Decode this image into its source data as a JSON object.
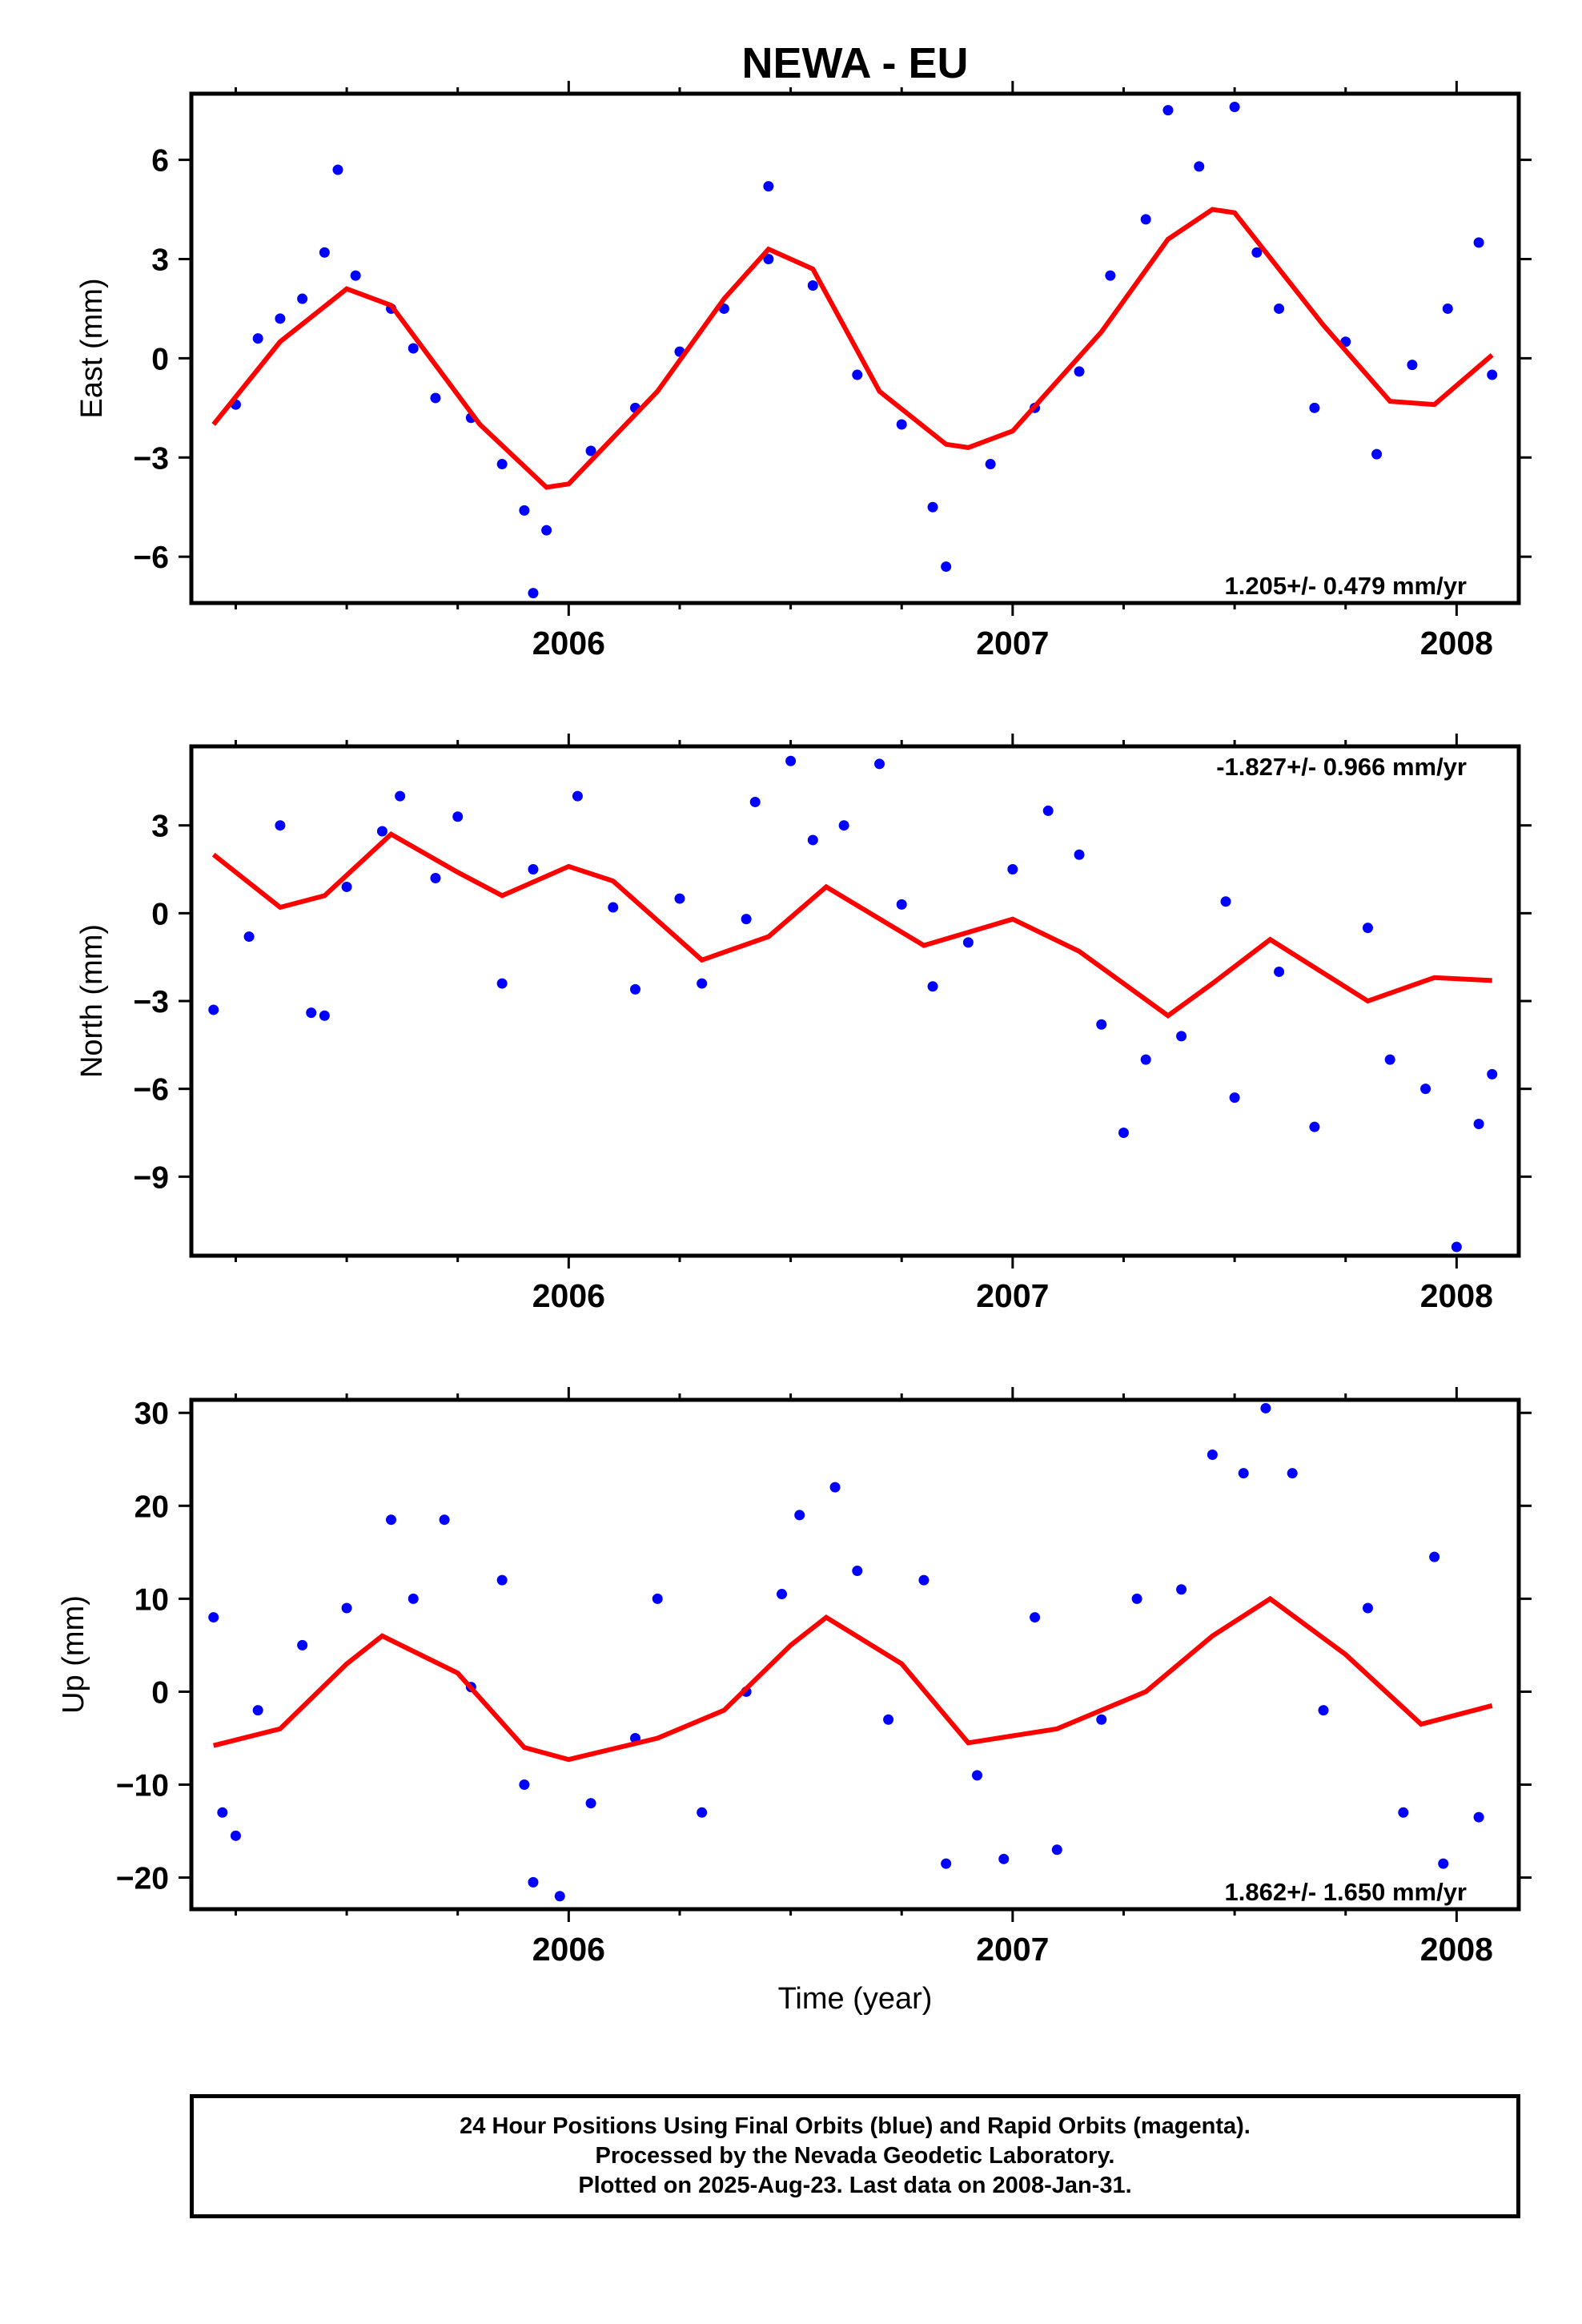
{
  "title": "NEWA - EU",
  "xlabel": "Time (year)",
  "x_tick_labels": [
    "2006",
    "2007",
    "2008"
  ],
  "caption": [
    "24 Hour Positions Using Final Orbits (blue) and Rapid Orbits (magenta).",
    "Processed by the Nevada Geodetic Laboratory.",
    "Plotted on 2025-Aug-23. Last data on 2008-Jan-31."
  ],
  "colors": {
    "data": "#0000ff",
    "fit": "#ff0000",
    "axis": "#000000"
  },
  "chart_data": [
    {
      "type": "scatter",
      "panel": "east",
      "ylabel": "East (mm)",
      "xlim": [
        2005.15,
        2008.14
      ],
      "ylim": [
        -7.4,
        8.0
      ],
      "yticks": [
        -6,
        -3,
        0,
        3,
        6
      ],
      "rate_label": "1.205+/- 0.479 mm/yr",
      "rate_position": "bottom-right",
      "fit": {
        "x": [
          2005.2,
          2005.35,
          2005.5,
          2005.6,
          2005.8,
          2005.95,
          2006.0,
          2006.2,
          2006.35,
          2006.45,
          2006.55,
          2006.7,
          2006.85,
          2006.9,
          2007.0,
          2007.2,
          2007.35,
          2007.45,
          2007.5,
          2007.7,
          2007.85,
          2007.95,
          2008.08
        ],
        "y": [
          -2.0,
          0.5,
          2.1,
          1.6,
          -2.0,
          -3.9,
          -3.8,
          -1.0,
          1.8,
          3.3,
          2.7,
          -1.0,
          -2.6,
          -2.7,
          -2.2,
          0.8,
          3.6,
          4.5,
          4.4,
          1.0,
          -1.3,
          -1.4,
          0.1
        ]
      },
      "points": [
        {
          "x": 2005.25,
          "y": -1.4
        },
        {
          "x": 2005.3,
          "y": 0.6
        },
        {
          "x": 2005.35,
          "y": 1.2
        },
        {
          "x": 2005.4,
          "y": 1.8
        },
        {
          "x": 2005.45,
          "y": 3.2
        },
        {
          "x": 2005.48,
          "y": 5.7
        },
        {
          "x": 2005.52,
          "y": 2.5
        },
        {
          "x": 2005.6,
          "y": 1.5
        },
        {
          "x": 2005.65,
          "y": 0.3
        },
        {
          "x": 2005.7,
          "y": -1.2
        },
        {
          "x": 2005.78,
          "y": -1.8
        },
        {
          "x": 2005.85,
          "y": -3.2
        },
        {
          "x": 2005.9,
          "y": -4.6
        },
        {
          "x": 2005.92,
          "y": -7.1
        },
        {
          "x": 2005.95,
          "y": -5.2
        },
        {
          "x": 2006.05,
          "y": -2.8
        },
        {
          "x": 2006.15,
          "y": -1.5
        },
        {
          "x": 2006.25,
          "y": 0.2
        },
        {
          "x": 2006.35,
          "y": 1.5
        },
        {
          "x": 2006.45,
          "y": 3.0
        },
        {
          "x": 2006.45,
          "y": 5.2
        },
        {
          "x": 2006.55,
          "y": 2.2
        },
        {
          "x": 2006.65,
          "y": -0.5
        },
        {
          "x": 2006.75,
          "y": -2.0
        },
        {
          "x": 2006.82,
          "y": -4.5
        },
        {
          "x": 2006.85,
          "y": -6.3
        },
        {
          "x": 2006.95,
          "y": -3.2
        },
        {
          "x": 2007.05,
          "y": -1.5
        },
        {
          "x": 2007.15,
          "y": -0.4
        },
        {
          "x": 2007.22,
          "y": 2.5
        },
        {
          "x": 2007.3,
          "y": 4.2
        },
        {
          "x": 2007.35,
          "y": 7.5
        },
        {
          "x": 2007.42,
          "y": 5.8
        },
        {
          "x": 2007.5,
          "y": 7.6
        },
        {
          "x": 2007.55,
          "y": 3.2
        },
        {
          "x": 2007.6,
          "y": 1.5
        },
        {
          "x": 2007.68,
          "y": -1.5
        },
        {
          "x": 2007.75,
          "y": 0.5
        },
        {
          "x": 2007.82,
          "y": -2.9
        },
        {
          "x": 2007.9,
          "y": -0.2
        },
        {
          "x": 2007.98,
          "y": 1.5
        },
        {
          "x": 2008.05,
          "y": 3.5
        },
        {
          "x": 2008.08,
          "y": -0.5
        }
      ]
    },
    {
      "type": "scatter",
      "panel": "north",
      "ylabel": "North (mm)",
      "xlim": [
        2005.15,
        2008.14
      ],
      "ylim": [
        -11.7,
        5.7
      ],
      "yticks": [
        -9,
        -6,
        -3,
        0,
        3
      ],
      "rate_label": "-1.827+/- 0.966 mm/yr",
      "rate_position": "top-right",
      "fit": {
        "x": [
          2005.2,
          2005.35,
          2005.45,
          2005.6,
          2005.75,
          2005.85,
          2006.0,
          2006.1,
          2006.3,
          2006.45,
          2006.58,
          2006.8,
          2007.0,
          2007.15,
          2007.35,
          2007.45,
          2007.58,
          2007.8,
          2007.95,
          2008.08
        ],
        "y": [
          2.0,
          0.2,
          0.6,
          2.7,
          1.4,
          0.6,
          1.6,
          1.1,
          -1.6,
          -0.8,
          0.9,
          -1.1,
          -0.2,
          -1.3,
          -3.5,
          -2.4,
          -0.9,
          -3.0,
          -2.2,
          -2.3
        ]
      },
      "points": [
        {
          "x": 2005.2,
          "y": -3.3
        },
        {
          "x": 2005.28,
          "y": -0.8
        },
        {
          "x": 2005.35,
          "y": 3.0
        },
        {
          "x": 2005.42,
          "y": -3.4
        },
        {
          "x": 2005.45,
          "y": -3.5
        },
        {
          "x": 2005.5,
          "y": 0.9
        },
        {
          "x": 2005.58,
          "y": 2.8
        },
        {
          "x": 2005.62,
          "y": 4.0
        },
        {
          "x": 2005.7,
          "y": 1.2
        },
        {
          "x": 2005.75,
          "y": 3.3
        },
        {
          "x": 2005.85,
          "y": -2.4
        },
        {
          "x": 2005.92,
          "y": 1.5
        },
        {
          "x": 2006.02,
          "y": 4.0
        },
        {
          "x": 2006.1,
          "y": 0.2
        },
        {
          "x": 2006.15,
          "y": -2.6
        },
        {
          "x": 2006.25,
          "y": 0.5
        },
        {
          "x": 2006.3,
          "y": -2.4
        },
        {
          "x": 2006.4,
          "y": -0.2
        },
        {
          "x": 2006.42,
          "y": 3.8
        },
        {
          "x": 2006.5,
          "y": 5.2
        },
        {
          "x": 2006.55,
          "y": 2.5
        },
        {
          "x": 2006.62,
          "y": 3.0
        },
        {
          "x": 2006.7,
          "y": 5.1
        },
        {
          "x": 2006.75,
          "y": 0.3
        },
        {
          "x": 2006.82,
          "y": -2.5
        },
        {
          "x": 2006.9,
          "y": -1.0
        },
        {
          "x": 2007.0,
          "y": 1.5
        },
        {
          "x": 2007.08,
          "y": 3.5
        },
        {
          "x": 2007.15,
          "y": 2.0
        },
        {
          "x": 2007.2,
          "y": -3.8
        },
        {
          "x": 2007.25,
          "y": -7.5
        },
        {
          "x": 2007.3,
          "y": -5.0
        },
        {
          "x": 2007.38,
          "y": -4.2
        },
        {
          "x": 2007.48,
          "y": 0.4
        },
        {
          "x": 2007.5,
          "y": -6.3
        },
        {
          "x": 2007.6,
          "y": -2.0
        },
        {
          "x": 2007.68,
          "y": -7.3
        },
        {
          "x": 2007.8,
          "y": -0.5
        },
        {
          "x": 2007.85,
          "y": -5.0
        },
        {
          "x": 2007.93,
          "y": -6.0
        },
        {
          "x": 2008.0,
          "y": -11.4
        },
        {
          "x": 2008.05,
          "y": -7.2
        },
        {
          "x": 2008.08,
          "y": -5.5
        }
      ]
    },
    {
      "type": "scatter",
      "panel": "up",
      "ylabel": "Up (mm)",
      "xlim": [
        2005.15,
        2008.14
      ],
      "ylim": [
        -23.4,
        31.4
      ],
      "yticks": [
        -20,
        -10,
        0,
        10,
        20,
        30
      ],
      "rate_label": "1.862+/- 1.650 mm/yr",
      "rate_position": "bottom-right",
      "fit": {
        "x": [
          2005.2,
          2005.35,
          2005.5,
          2005.58,
          2005.75,
          2005.9,
          2006.0,
          2006.2,
          2006.35,
          2006.5,
          2006.58,
          2006.75,
          2006.9,
          2007.1,
          2007.3,
          2007.45,
          2007.58,
          2007.75,
          2007.92,
          2008.08
        ],
        "y": [
          -5.8,
          -4.0,
          3.0,
          6.0,
          2.0,
          -6.0,
          -7.3,
          -5.0,
          -2.0,
          5.0,
          8.0,
          3.0,
          -5.5,
          -4.0,
          0.0,
          6.0,
          10.0,
          4.0,
          -3.5,
          -1.5
        ]
      },
      "points": [
        {
          "x": 2005.2,
          "y": 8.0
        },
        {
          "x": 2005.22,
          "y": -13.0
        },
        {
          "x": 2005.25,
          "y": -15.5
        },
        {
          "x": 2005.3,
          "y": -2.0
        },
        {
          "x": 2005.4,
          "y": 5.0
        },
        {
          "x": 2005.5,
          "y": 9.0
        },
        {
          "x": 2005.6,
          "y": 18.5
        },
        {
          "x": 2005.65,
          "y": 10.0
        },
        {
          "x": 2005.72,
          "y": 18.5
        },
        {
          "x": 2005.78,
          "y": 0.5
        },
        {
          "x": 2005.85,
          "y": 12.0
        },
        {
          "x": 2005.9,
          "y": -10.0
        },
        {
          "x": 2005.92,
          "y": -20.5
        },
        {
          "x": 2005.98,
          "y": -22.0
        },
        {
          "x": 2006.05,
          "y": -12.0
        },
        {
          "x": 2006.15,
          "y": -5.0
        },
        {
          "x": 2006.2,
          "y": 10.0
        },
        {
          "x": 2006.3,
          "y": -13.0
        },
        {
          "x": 2006.4,
          "y": 0.0
        },
        {
          "x": 2006.48,
          "y": 10.5
        },
        {
          "x": 2006.52,
          "y": 19.0
        },
        {
          "x": 2006.6,
          "y": 22.0
        },
        {
          "x": 2006.65,
          "y": 13.0
        },
        {
          "x": 2006.72,
          "y": -3.0
        },
        {
          "x": 2006.8,
          "y": 12.0
        },
        {
          "x": 2006.85,
          "y": -18.5
        },
        {
          "x": 2006.92,
          "y": -9.0
        },
        {
          "x": 2006.98,
          "y": -18.0
        },
        {
          "x": 2007.05,
          "y": 8.0
        },
        {
          "x": 2007.1,
          "y": -17.0
        },
        {
          "x": 2007.2,
          "y": -3.0
        },
        {
          "x": 2007.28,
          "y": 10.0
        },
        {
          "x": 2007.38,
          "y": 11.0
        },
        {
          "x": 2007.45,
          "y": 25.5
        },
        {
          "x": 2007.52,
          "y": 23.5
        },
        {
          "x": 2007.57,
          "y": 30.5
        },
        {
          "x": 2007.63,
          "y": 23.5
        },
        {
          "x": 2007.7,
          "y": -2.0
        },
        {
          "x": 2007.8,
          "y": 9.0
        },
        {
          "x": 2007.88,
          "y": -13.0
        },
        {
          "x": 2007.95,
          "y": 14.5
        },
        {
          "x": 2007.97,
          "y": -18.5
        },
        {
          "x": 2008.05,
          "y": -13.5
        }
      ]
    }
  ]
}
